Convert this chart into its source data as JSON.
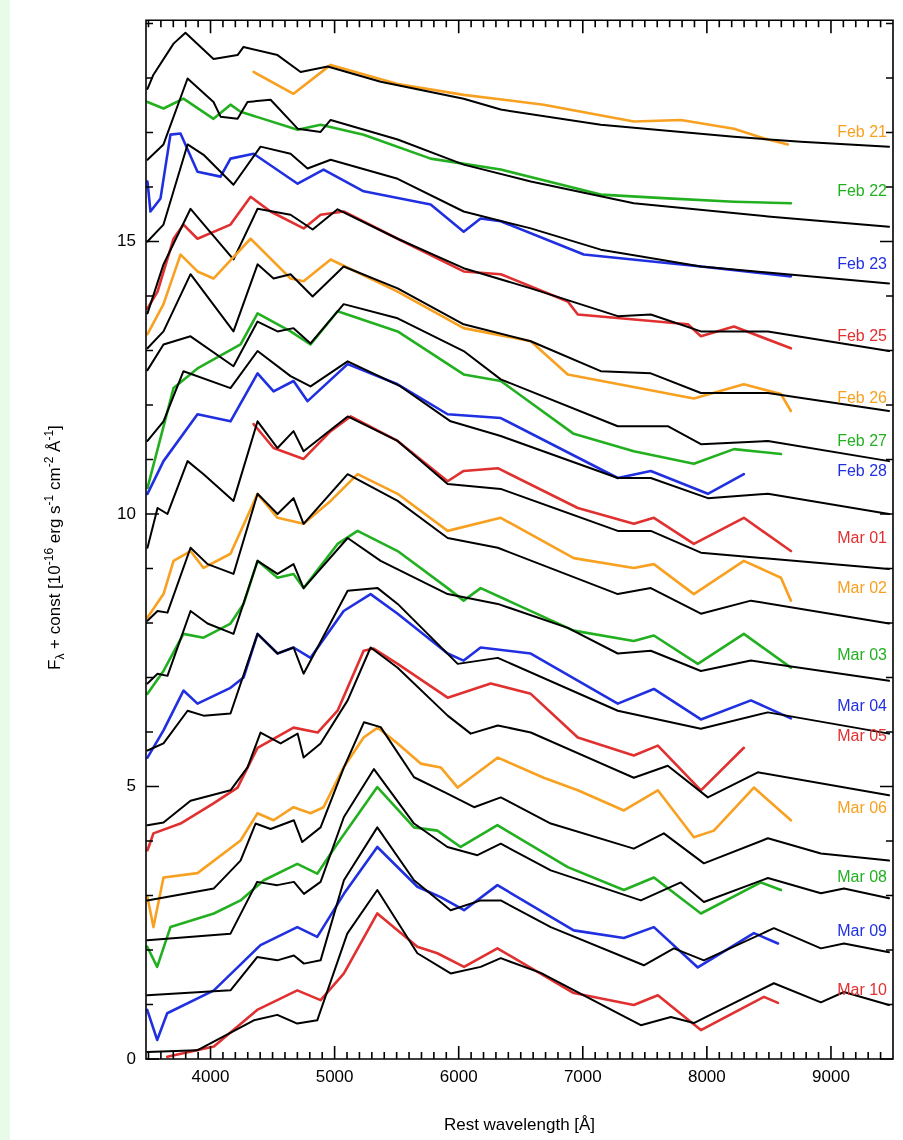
{
  "chart_data": {
    "type": "line",
    "xlabel": "Rest wavelength [Å]",
    "ylabel": "F$_{λ}$ + const [10$^{-16}$ erg s$^{-1}$ cm$^{-2}$ Å$^{-1}$]",
    "xlim": [
      3480,
      9500
    ],
    "ylim": [
      0,
      19.06
    ],
    "xticks": [
      {
        "value": 3500,
        "label": null
      },
      {
        "value": 3600,
        "label": null
      },
      {
        "value": 3700,
        "label": null
      },
      {
        "value": 3800,
        "label": null
      },
      {
        "value": 3900,
        "label": null
      },
      4000,
      {
        "value": 4100,
        "label": null
      },
      {
        "value": 4200,
        "label": null
      },
      {
        "value": 4300,
        "label": null
      },
      {
        "value": 4400,
        "label": null
      },
      {
        "value": 4500,
        "label": null
      },
      {
        "value": 4600,
        "label": null
      },
      {
        "value": 4700,
        "label": null
      },
      {
        "value": 4800,
        "label": null
      },
      {
        "value": 4900,
        "label": null
      },
      5000,
      {
        "value": 5100,
        "label": null
      },
      {
        "value": 5200,
        "label": null
      },
      {
        "value": 5300,
        "label": null
      },
      {
        "value": 5400,
        "label": null
      },
      {
        "value": 5500,
        "label": null
      },
      {
        "value": 5600,
        "label": null
      },
      {
        "value": 5700,
        "label": null
      },
      {
        "value": 5800,
        "label": null
      },
      {
        "value": 5900,
        "label": null
      },
      6000,
      {
        "value": 6100,
        "label": null
      },
      {
        "value": 6200,
        "label": null
      },
      {
        "value": 6300,
        "label": null
      },
      {
        "value": 6400,
        "label": null
      },
      {
        "value": 6500,
        "label": null
      },
      {
        "value": 6600,
        "label": null
      },
      {
        "value": 6700,
        "label": null
      },
      {
        "value": 6800,
        "label": null
      },
      {
        "value": 6900,
        "label": null
      },
      7000,
      {
        "value": 7100,
        "label": null
      },
      {
        "value": 7200,
        "label": null
      },
      {
        "value": 7300,
        "label": null
      },
      {
        "value": 7400,
        "label": null
      },
      {
        "value": 7500,
        "label": null
      },
      {
        "value": 7600,
        "label": null
      },
      {
        "value": 7700,
        "label": null
      },
      {
        "value": 7800,
        "label": null
      },
      {
        "value": 7900,
        "label": null
      },
      8000,
      {
        "value": 8100,
        "label": null
      },
      {
        "value": 8200,
        "label": null
      },
      {
        "value": 8300,
        "label": null
      },
      {
        "value": 8400,
        "label": null
      },
      {
        "value": 8500,
        "label": null
      },
      {
        "value": 8600,
        "label": null
      },
      {
        "value": 8700,
        "label": null
      },
      {
        "value": 8800,
        "label": null
      },
      {
        "value": 8900,
        "label": null
      },
      9000,
      {
        "value": 9100,
        "label": null
      },
      {
        "value": 9200,
        "label": null
      },
      {
        "value": 9300,
        "label": null
      },
      {
        "value": 9400,
        "label": null
      }
    ],
    "yticks": [
      0,
      {
        "value": 1,
        "label": null
      },
      {
        "value": 2,
        "label": null
      },
      {
        "value": 3,
        "label": null
      },
      {
        "value": 4,
        "label": null
      },
      5,
      {
        "value": 6,
        "label": null
      },
      {
        "value": 7,
        "label": null
      },
      {
        "value": 8,
        "label": null
      },
      {
        "value": 9,
        "label": null
      },
      10,
      {
        "value": 11,
        "label": null
      },
      {
        "value": 12,
        "label": null
      },
      {
        "value": 13,
        "label": null
      },
      {
        "value": 14,
        "label": null
      },
      15,
      {
        "value": 16,
        "label": null
      },
      {
        "value": 17,
        "label": null
      },
      {
        "value": 18,
        "label": null
      },
      {
        "value": 19,
        "label": null
      }
    ],
    "legend": false,
    "marker": "none",
    "series": [
      {
        "name": "Feb 21",
        "color": "#f8a020",
        "x": [
          4347,
          4669,
          4968,
          5508,
          6040,
          6685,
          7411,
          7790,
          8218,
          8492,
          8653
        ],
        "values": [
          18.11,
          17.71,
          18.24,
          17.89,
          17.69,
          17.51,
          17.2,
          17.23,
          17.07,
          16.87,
          16.78
        ]
      },
      {
        "color": "#000000",
        "x": [
          3492,
          3540,
          3702,
          3798,
          4024,
          4218,
          4266,
          4540,
          4726,
          4944,
          5371,
          6040,
          6339,
          7145,
          8218,
          8758,
          9468
        ],
        "values": [
          17.8,
          18.06,
          18.63,
          18.83,
          18.35,
          18.42,
          18.57,
          18.42,
          18.11,
          18.21,
          17.93,
          17.62,
          17.42,
          17.14,
          16.92,
          16.83,
          16.74
        ]
      },
      {
        "name": "Feb 22",
        "color": "#22b020",
        "x": [
          3492,
          3621,
          3782,
          4024,
          4161,
          4242,
          4702,
          4887,
          5234,
          5774,
          6339,
          7145,
          7685,
          8218,
          8677
        ],
        "values": [
          17.56,
          17.44,
          17.62,
          17.25,
          17.51,
          17.38,
          17.05,
          17.14,
          16.96,
          16.52,
          16.32,
          15.86,
          15.79,
          15.73,
          15.7
        ]
      },
      {
        "color": "#000000",
        "x": [
          3492,
          3621,
          3815,
          4024,
          4081,
          4218,
          4298,
          4484,
          4702,
          4887,
          4968,
          5508,
          6040,
          6581,
          7411,
          8492,
          9468
        ],
        "values": [
          16.5,
          16.78,
          17.99,
          17.56,
          17.29,
          17.25,
          17.56,
          17.6,
          17.07,
          17.01,
          17.23,
          16.87,
          16.41,
          16.1,
          15.7,
          15.46,
          15.27
        ]
      },
      {
        "name": "Feb 23",
        "color": "#2030e0",
        "x": [
          3492,
          3516,
          3597,
          3677,
          3758,
          3895,
          4081,
          4161,
          4347,
          4702,
          4911,
          5234,
          5774,
          6040,
          6177,
          6339,
          7008,
          7952,
          8677
        ],
        "values": [
          16.1,
          15.55,
          15.79,
          16.96,
          16.98,
          16.28,
          16.19,
          16.52,
          16.61,
          16.06,
          16.32,
          15.92,
          15.68,
          15.18,
          15.42,
          15.37,
          14.76,
          14.54,
          14.36
        ]
      },
      {
        "color": "#000000",
        "x": [
          3492,
          3621,
          3815,
          3944,
          4185,
          4403,
          4645,
          4782,
          4968,
          5508,
          6040,
          6581,
          7145,
          7952,
          9468
        ],
        "values": [
          15,
          15.31,
          16.78,
          16.59,
          16.04,
          16.74,
          16.61,
          16.34,
          16.5,
          16.15,
          15.55,
          15.24,
          14.85,
          14.54,
          14.23
        ]
      },
      {
        "name": "Feb 25",
        "color": "#e03030",
        "x": [
          3492,
          3573,
          3702,
          3782,
          3895,
          4161,
          4323,
          4484,
          4750,
          4887,
          5073,
          5508,
          6040,
          6339,
          6879,
          6960,
          7847,
          7952,
          8218,
          8677
        ],
        "values": [
          13.77,
          14.08,
          15.05,
          15.31,
          15.05,
          15.31,
          15.82,
          15.55,
          15.24,
          15.49,
          15.55,
          15.05,
          14.45,
          14.4,
          13.9,
          13.66,
          13.48,
          13.26,
          13.44,
          13.04
        ]
      },
      {
        "color": "#000000",
        "x": [
          3492,
          3621,
          3839,
          4185,
          4379,
          4645,
          4823,
          5024,
          5508,
          6040,
          6581,
          7282,
          7548,
          7952,
          8492,
          9468
        ],
        "values": [
          13.68,
          14.58,
          15.6,
          14.67,
          15.6,
          15.49,
          15.22,
          15.59,
          15.05,
          14.51,
          14.14,
          13.63,
          13.66,
          13.35,
          13.35,
          12.99
        ]
      },
      {
        "name": "Feb 26",
        "color": "#f8a020",
        "x": [
          3492,
          3621,
          3758,
          3895,
          4024,
          4323,
          4645,
          4750,
          4968,
          5508,
          6040,
          6581,
          6879,
          7895,
          8298,
          8597,
          8677
        ],
        "values": [
          13.3,
          13.85,
          14.76,
          14.45,
          14.32,
          15.05,
          14.32,
          14.27,
          14.67,
          14.08,
          13.41,
          13.17,
          12.56,
          12.12,
          12.38,
          12.2,
          11.89
        ]
      },
      {
        "color": "#000000",
        "x": [
          3492,
          3621,
          3839,
          4185,
          4379,
          4508,
          4645,
          4823,
          5073,
          5508,
          6040,
          6581,
          7145,
          7548,
          7952,
          8492,
          9468
        ],
        "values": [
          13.04,
          13.35,
          14.4,
          13.35,
          14.58,
          14.32,
          14.4,
          13.99,
          14.54,
          14.14,
          13.48,
          13.17,
          12.62,
          12.58,
          12.22,
          12.22,
          11.89
        ]
      },
      {
        "name": "Feb 27",
        "color": "#22b020",
        "x": [
          3492,
          3702,
          3895,
          4242,
          4379,
          4645,
          4806,
          5024,
          5508,
          6040,
          6339,
          6927,
          7411,
          7895,
          8218,
          8597
        ],
        "values": [
          10.48,
          12.31,
          12.67,
          13.11,
          13.68,
          13.35,
          13.11,
          13.72,
          13.35,
          12.56,
          12.44,
          11.47,
          11.15,
          10.92,
          11.19,
          11.1
        ]
      },
      {
        "color": "#000000",
        "x": [
          3492,
          3621,
          3839,
          4185,
          4379,
          4540,
          4669,
          4806,
          5073,
          5508,
          6040,
          6339,
          7282,
          7685,
          7952,
          8492,
          9468
        ],
        "values": [
          12.64,
          13.11,
          13.26,
          12.71,
          13.53,
          13.35,
          13.41,
          13.13,
          13.85,
          13.59,
          12.99,
          12.47,
          11.61,
          11.61,
          11.28,
          11.34,
          10.97
        ]
      },
      {
        "name": "Feb 28",
        "color": "#2030e0",
        "x": [
          3492,
          3621,
          3895,
          4161,
          4379,
          4508,
          4669,
          4782,
          5105,
          5508,
          5911,
          6339,
          7282,
          7548,
          8008,
          8298
        ],
        "values": [
          10.37,
          10.97,
          11.83,
          11.7,
          12.58,
          12.25,
          12.44,
          12.07,
          12.75,
          12.38,
          11.83,
          11.76,
          10.66,
          10.79,
          10.37,
          10.73
        ]
      },
      {
        "color": "#000000",
        "x": [
          3492,
          3621,
          3782,
          4161,
          4379,
          4645,
          4806,
          5105,
          5532,
          5935,
          6339,
          7282,
          7548,
          8008,
          8492,
          9468
        ],
        "values": [
          11.34,
          11.7,
          12.62,
          12.31,
          12.99,
          12.53,
          12.34,
          12.8,
          12.34,
          11.7,
          11.43,
          10.66,
          10.66,
          10.29,
          10.37,
          10
        ]
      },
      {
        "name": "Mar 01",
        "color": "#e03030",
        "x": [
          4347,
          4508,
          4750,
          4968,
          5129,
          5508,
          5911,
          6040,
          6315,
          6960,
          7411,
          7573,
          7895,
          8298,
          8677
        ],
        "values": [
          11.65,
          11.21,
          11.01,
          11.52,
          11.79,
          11.34,
          10.6,
          10.79,
          10.84,
          10.11,
          9.82,
          9.93,
          9.45,
          9.93,
          9.32
        ]
      },
      {
        "color": "#000000",
        "x": [
          3492,
          3573,
          3653,
          3815,
          3944,
          4185,
          4379,
          4540,
          4669,
          4750,
          5105,
          5508,
          5911,
          6339,
          7282,
          7548,
          7952,
          9468
        ],
        "values": [
          9.38,
          10.11,
          10,
          10.97,
          10.73,
          10.24,
          11.7,
          11.21,
          11.52,
          11.15,
          11.79,
          11.34,
          10.55,
          10.46,
          9.69,
          9.69,
          9.29,
          8.99
        ]
      },
      {
        "name": "Mar 02",
        "color": "#f8a020",
        "x": [
          3492,
          3621,
          3702,
          3839,
          3944,
          4161,
          4379,
          4540,
          4750,
          4968,
          5185,
          5508,
          5911,
          6339,
          6927,
          7411,
          7573,
          7895,
          8298,
          8597,
          8677
        ],
        "values": [
          8.1,
          8.53,
          9.14,
          9.32,
          9.01,
          9.27,
          10.37,
          9.93,
          9.82,
          10.24,
          10.73,
          10.37,
          9.69,
          9.93,
          9.19,
          9.01,
          9.08,
          8.53,
          9.14,
          8.83,
          8.41
        ]
      },
      {
        "color": "#000000",
        "x": [
          3492,
          3573,
          3653,
          3839,
          3976,
          4185,
          4379,
          4540,
          4669,
          4750,
          5105,
          5508,
          5911,
          6315,
          7282,
          7548,
          7952,
          8355,
          9468
        ],
        "values": [
          8.04,
          8.22,
          8.19,
          9.38,
          9.08,
          8.9,
          10.37,
          10,
          10.29,
          9.82,
          10.73,
          10.24,
          9.56,
          9.38,
          8.53,
          8.64,
          8.17,
          8.41,
          7.99
        ]
      },
      {
        "name": "Mar 03",
        "color": "#22b020",
        "x": [
          3492,
          3621,
          3782,
          3944,
          4161,
          4266,
          4379,
          4540,
          4669,
          4750,
          5024,
          5185,
          5508,
          5911,
          6040,
          6177,
          6927,
          7411,
          7573,
          7927,
          8298,
          8677
        ],
        "values": [
          6.7,
          7.12,
          7.8,
          7.73,
          7.99,
          8.35,
          9.14,
          8.83,
          8.9,
          8.64,
          9.45,
          9.69,
          9.32,
          8.64,
          8.41,
          8.64,
          7.86,
          7.67,
          7.77,
          7.25,
          7.8,
          7.18
        ]
      },
      {
        "color": "#000000",
        "x": [
          3492,
          3573,
          3653,
          3839,
          3976,
          4185,
          4379,
          4540,
          4669,
          4750,
          5105,
          5371,
          5911,
          6315,
          6879,
          7282,
          7548,
          7952,
          8355,
          9468
        ],
        "values": [
          6.89,
          7.07,
          7.03,
          8.22,
          7.99,
          7.8,
          9.14,
          8.9,
          9.08,
          8.64,
          9.56,
          9.14,
          8.53,
          8.35,
          7.91,
          7.44,
          7.49,
          7.12,
          7.31,
          6.94
        ]
      },
      {
        "name": "Mar 04",
        "color": "#2030e0",
        "x": [
          3492,
          3621,
          3782,
          3895,
          4161,
          4266,
          4379,
          4540,
          4669,
          4806,
          5073,
          5290,
          5508,
          5911,
          6040,
          6177,
          6581,
          7282,
          7573,
          7952,
          8355,
          8677
        ],
        "values": [
          5.53,
          6.03,
          6.76,
          6.52,
          6.81,
          7,
          7.8,
          7.44,
          7.55,
          7.36,
          8.22,
          8.53,
          8.17,
          7.44,
          7.31,
          7.55,
          7.44,
          6.52,
          6.79,
          6.23,
          6.58,
          6.25
        ]
      },
      {
        "color": "#000000",
        "x": [
          3492,
          3621,
          3815,
          3944,
          4161,
          4379,
          4540,
          4669,
          4750,
          5105,
          5347,
          5508,
          5992,
          6315,
          7282,
          7952,
          8492,
          9468
        ],
        "values": [
          5.66,
          5.79,
          6.39,
          6.3,
          6.34,
          7.8,
          7.44,
          7.55,
          7.07,
          8.59,
          8.64,
          8.35,
          7.25,
          7.36,
          6.39,
          6.06,
          6.36,
          5.97
        ]
      },
      {
        "name": "Mar 05",
        "color": "#e03030",
        "x": [
          3492,
          3540,
          3758,
          4024,
          4218,
          4379,
          4669,
          4863,
          5024,
          5234,
          5315,
          5508,
          5911,
          6258,
          6581,
          6960,
          7411,
          7605,
          7952,
          8298
        ],
        "values": [
          3.83,
          4.14,
          4.32,
          4.69,
          4.98,
          5.71,
          6.08,
          5.99,
          6.39,
          7.49,
          7.53,
          7.25,
          6.63,
          6.89,
          6.7,
          5.9,
          5.57,
          5.75,
          4.93,
          5.71
        ]
      },
      {
        "color": "#000000",
        "x": [
          3492,
          3621,
          3839,
          4161,
          4298,
          4403,
          4565,
          4702,
          4750,
          4887,
          5105,
          5290,
          5508,
          5911,
          6097,
          6315,
          6581,
          7411,
          7685,
          8008,
          8411,
          9468
        ],
        "values": [
          4.29,
          4.34,
          4.74,
          4.93,
          5.35,
          5.99,
          5.79,
          5.97,
          5.53,
          5.79,
          6.58,
          7.55,
          7.18,
          6.3,
          5.97,
          6.12,
          5.99,
          5.16,
          5.38,
          4.8,
          5.26,
          4.84
        ]
      },
      {
        "name": "Mar 06",
        "color": "#f8a020",
        "x": [
          3492,
          3540,
          3621,
          3895,
          4242,
          4379,
          4508,
          4669,
          4806,
          4911,
          5073,
          5234,
          5347,
          5508,
          5694,
          5855,
          5992,
          6315,
          6685,
          6960,
          7331,
          7605,
          7895,
          8056,
          8379,
          8677
        ],
        "values": [
          2.97,
          2.42,
          3.33,
          3.41,
          4.01,
          4.51,
          4.38,
          4.62,
          4.51,
          4.62,
          5.35,
          5.9,
          6.08,
          5.79,
          5.42,
          5.35,
          4.98,
          5.53,
          5.16,
          4.93,
          4.56,
          4.93,
          4.07,
          4.19,
          4.98,
          4.38
        ]
      },
      {
        "color": "#000000",
        "x": [
          3490,
          4027,
          4242,
          4363,
          4484,
          4672,
          4739,
          4887,
          5075,
          5237,
          5371,
          5640,
          5909,
          6124,
          6339,
          6742,
          7411,
          7653,
          7976,
          8492,
          8919,
          9468
        ],
        "values": [
          2.91,
          3.13,
          3.64,
          4.32,
          4.22,
          4.38,
          3.98,
          4.25,
          5.35,
          6.18,
          6.09,
          5.17,
          4.87,
          4.62,
          4.8,
          4.32,
          3.86,
          4.14,
          3.59,
          4.05,
          3.77,
          3.64
        ]
      },
      {
        "name": "Mar 08",
        "color": "#22b020",
        "x": [
          3490,
          3570,
          3677,
          4027,
          4242,
          4430,
          4699,
          4860,
          5022,
          5344,
          5640,
          5828,
          6016,
          6312,
          6879,
          7331,
          7573,
          7952,
          8435,
          8597
        ],
        "values": [
          2.06,
          1.69,
          2.42,
          2.67,
          2.91,
          3.28,
          3.58,
          3.4,
          3.95,
          4.99,
          4.25,
          4.19,
          3.89,
          4.29,
          3.52,
          3.1,
          3.33,
          2.67,
          3.24,
          3.1
        ]
      },
      {
        "color": "#000000",
        "x": [
          3490,
          4161,
          4376,
          4538,
          4672,
          4753,
          4887,
          5075,
          5317,
          5640,
          5909,
          6151,
          6339,
          6742,
          7468,
          7790,
          7976,
          8492,
          8919,
          9105,
          9468
        ],
        "values": [
          2.18,
          2.3,
          3.25,
          3.19,
          3.25,
          3.03,
          3.25,
          4.44,
          5.32,
          4.32,
          3.89,
          3.74,
          3.95,
          3.46,
          2.91,
          3.24,
          2.88,
          3.32,
          3.04,
          3.13,
          2.95
        ]
      },
      {
        "name": "Mar 09",
        "color": "#2030e0",
        "x": [
          3490,
          3570,
          3651,
          4027,
          4403,
          4699,
          4860,
          5075,
          5344,
          5667,
          5855,
          6043,
          6312,
          6927,
          7331,
          7573,
          7927,
          8379,
          8573
        ],
        "values": [
          0.9,
          0.35,
          0.84,
          1.26,
          2.09,
          2.42,
          2.24,
          3.03,
          3.89,
          3.16,
          2.97,
          2.73,
          3.19,
          2.36,
          2.22,
          2.42,
          1.68,
          2.31,
          2.12
        ]
      },
      {
        "color": "#000000",
        "x": [
          3490,
          4161,
          4376,
          4538,
          4672,
          4753,
          4887,
          5075,
          5344,
          5640,
          5935,
          6177,
          6339,
          6742,
          7492,
          7734,
          7976,
          8540,
          8919,
          9105,
          9468
        ],
        "values": [
          1.17,
          1.26,
          1.87,
          1.81,
          1.9,
          1.75,
          1.81,
          3.28,
          4.25,
          3.28,
          2.73,
          2.91,
          2.91,
          2.42,
          1.72,
          2.03,
          1.81,
          2.4,
          2.03,
          2.12,
          1.96
        ]
      },
      {
        "name": "Mar 10",
        "color": "#e03030",
        "x": [
          3651,
          4027,
          4376,
          4699,
          4887,
          5075,
          5344,
          5667,
          5828,
          6043,
          6312,
          6927,
          7411,
          7605,
          7952,
          8460,
          8573
        ],
        "values": [
          0.04,
          0.23,
          0.9,
          1.26,
          1.08,
          1.57,
          2.67,
          2.06,
          1.94,
          1.69,
          2.03,
          1.21,
          0.99,
          1.17,
          0.53,
          1.14,
          1.03
        ]
      },
      {
        "color": "#000000",
        "x": [
          3490,
          3893,
          4349,
          4538,
          4699,
          4860,
          5102,
          5344,
          5667,
          5935,
          6177,
          6339,
          6661,
          7468,
          7710,
          7895,
          8540,
          8919,
          9105,
          9468
        ],
        "values": [
          0.13,
          0.16,
          0.71,
          0.81,
          0.65,
          0.71,
          2.3,
          3.1,
          1.94,
          1.57,
          1.69,
          1.85,
          1.58,
          0.62,
          0.77,
          0.66,
          1.39,
          1.04,
          1.23,
          0.99
        ]
      }
    ]
  }
}
